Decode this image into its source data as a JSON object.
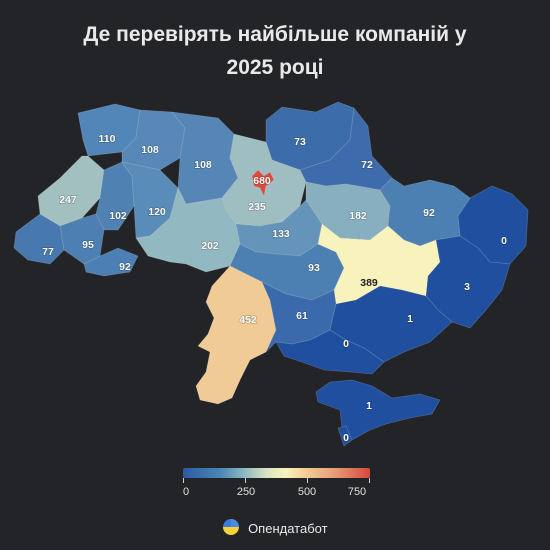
{
  "title": {
    "line1": "Де перевірять найбільше компаній у",
    "line2": "2025 році"
  },
  "regions": [
    {
      "id": "volyn",
      "value": "110"
    },
    {
      "id": "rivne",
      "value": "108"
    },
    {
      "id": "zhytomyr",
      "value": "108"
    },
    {
      "id": "chernihiv",
      "value": "73"
    },
    {
      "id": "sumy",
      "value": "72"
    },
    {
      "id": "kyiv-city",
      "value": "680"
    },
    {
      "id": "kyiv-oblast",
      "value": "235"
    },
    {
      "id": "lviv",
      "value": "247"
    },
    {
      "id": "ternopil",
      "value": "102"
    },
    {
      "id": "khmelnytskyi",
      "value": "120"
    },
    {
      "id": "kharkiv",
      "value": "182"
    },
    {
      "id": "luhansk",
      "value": "0"
    },
    {
      "id": "poltava",
      "value": "92"
    },
    {
      "id": "zakarpattia",
      "value": "77"
    },
    {
      "id": "ivano-frankivsk",
      "value": "95"
    },
    {
      "id": "chernivtsi",
      "value": "92"
    },
    {
      "id": "vinnytsia",
      "value": "202"
    },
    {
      "id": "cherkasy",
      "value": "133"
    },
    {
      "id": "kirovohrad",
      "value": "93"
    },
    {
      "id": "dnipro",
      "value": "389"
    },
    {
      "id": "donetsk",
      "value": "3"
    },
    {
      "id": "odesa",
      "value": "452"
    },
    {
      "id": "mykolaiv",
      "value": "61"
    },
    {
      "id": "zaporizhzhia",
      "value": "1"
    },
    {
      "id": "kherson",
      "value": "0"
    },
    {
      "id": "crimea",
      "value": "1"
    },
    {
      "id": "sevastopol",
      "value": "0"
    }
  ],
  "legend": {
    "min": 0,
    "max": 750,
    "labels": [
      "0",
      "250",
      "500",
      "750"
    ]
  },
  "colors": {
    "low": "#1f4f9e",
    "mid": "#f8f2bc",
    "high": "#d7493f",
    "background": "#232427"
  },
  "brand": {
    "name": "Опендатабот",
    "logo_icon": "opendatabot-icon"
  }
}
